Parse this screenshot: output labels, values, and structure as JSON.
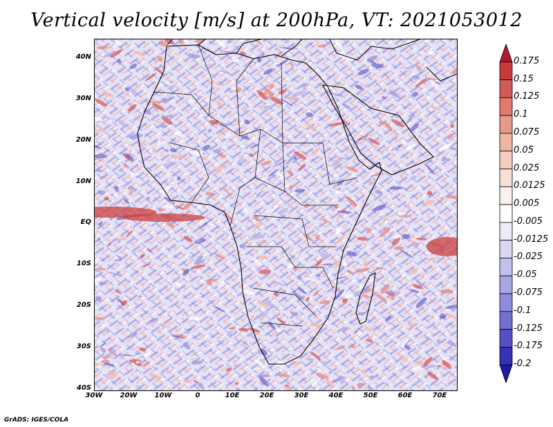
{
  "title": "Vertical velocity [m/s] at 200hPa, VT: 2021053012",
  "lat_labels": [
    "40N",
    "30N",
    "20N",
    "10N",
    "EQ",
    "10S",
    "20S",
    "30S",
    "40S"
  ],
  "lon_labels": [
    "30W",
    "20W",
    "10W",
    "0",
    "10E",
    "20E",
    "30E",
    "40E",
    "50E",
    "60E",
    "70E"
  ],
  "colorbar": {
    "labels": [
      "0.175",
      "0.15",
      "0.125",
      "0.1",
      "0.075",
      "0.05",
      "0.025",
      "0.0125",
      "0.005",
      "-0.005",
      "-0.0125",
      "-0.025",
      "-0.05",
      "-0.075",
      "-0.1",
      "-0.125",
      "-0.175",
      "-0.2"
    ],
    "colors": [
      "#b2182b",
      "#c63a3e",
      "#d35a56",
      "#de7a6e",
      "#e79a88",
      "#efb6a3",
      "#f4cdbd",
      "#f8e0d6",
      "#fbf1ec",
      "#ffffff",
      "#ecebf8",
      "#d9d7f2",
      "#c2c0ec",
      "#a9a6e4",
      "#8f8bdc",
      "#7470d2",
      "#5550c5",
      "#3631b6",
      "#1f1aa6"
    ]
  },
  "credit": "GrADS: IGES/COLA"
}
